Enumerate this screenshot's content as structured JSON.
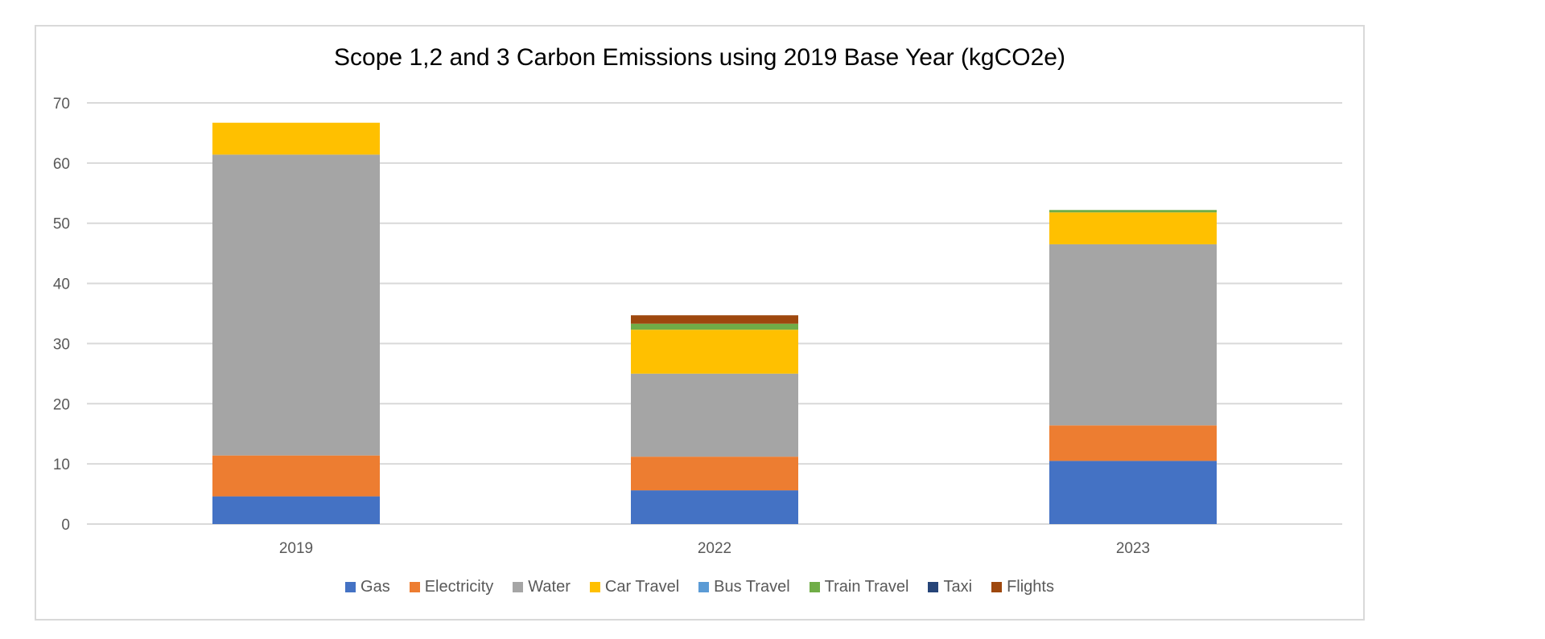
{
  "chart_data": {
    "type": "bar",
    "stacked": true,
    "title": "Scope 1,2 and 3 Carbon Emissions using 2019 Base Year (kgCO2e)",
    "xlabel": "",
    "ylabel": "",
    "ylim": [
      0,
      70
    ],
    "yticks": [
      "0",
      "10",
      "20",
      "30",
      "40",
      "50",
      "60",
      "70"
    ],
    "grid": true,
    "legend_position": "bottom",
    "categories": [
      "2019",
      "2022",
      "2023"
    ],
    "series": [
      {
        "name": "Gas",
        "color": "#4472C4",
        "values": [
          4.6,
          5.6,
          10.5
        ]
      },
      {
        "name": "Electricity",
        "color": "#ED7D31",
        "values": [
          6.8,
          5.6,
          5.9
        ]
      },
      {
        "name": "Water",
        "color": "#A5A5A5",
        "values": [
          50.0,
          13.8,
          30.1
        ]
      },
      {
        "name": "Car Travel",
        "color": "#FFC000",
        "values": [
          5.3,
          7.3,
          5.3
        ]
      },
      {
        "name": "Bus Travel",
        "color": "#5B9BD5",
        "values": [
          0,
          0,
          0
        ]
      },
      {
        "name": "Train Travel",
        "color": "#70AD47",
        "values": [
          0,
          1.0,
          0.4
        ]
      },
      {
        "name": "Taxi",
        "color": "#264478",
        "values": [
          0,
          0,
          0
        ]
      },
      {
        "name": "Flights",
        "color": "#9E480E",
        "values": [
          0,
          1.4,
          0
        ]
      }
    ]
  }
}
